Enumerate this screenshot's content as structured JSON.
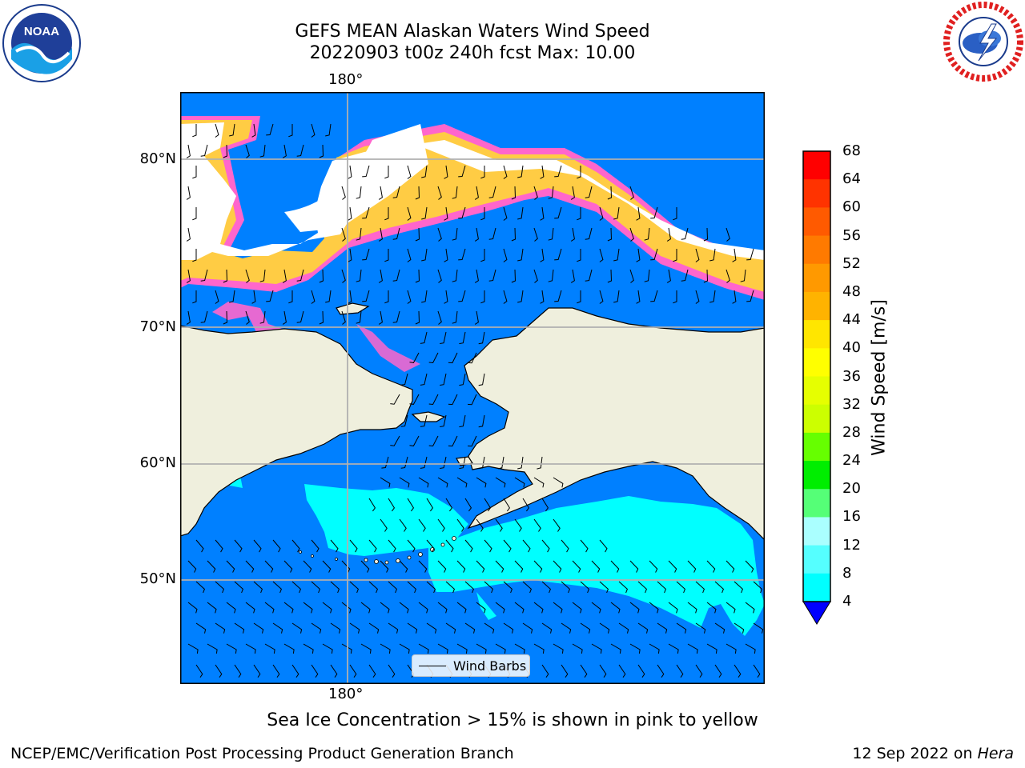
{
  "header": {
    "title_line1": "GEFS MEAN Alaskan Waters Wind Speed",
    "title_line2": "20220903 t00z 240h fcst   Max: 10.00"
  },
  "logos": {
    "left": {
      "icon": "noaa-logo-icon",
      "text": "NOAA"
    },
    "right": {
      "icon": "national-weather-service-logo-icon"
    }
  },
  "map": {
    "lon_label_top": "180°",
    "lon_label_bottom": "180°",
    "lat_labels": [
      "80°N",
      "70°N",
      "60°N",
      "50°N"
    ],
    "colors": {
      "ocean_low": "#0080ff",
      "ocean_mid": "#00ffff",
      "land": "#efefdd",
      "ice_edge": "#ff66cc",
      "ice_core": "#ffcc44"
    }
  },
  "legend": {
    "label": "Wind Barbs"
  },
  "colorbar": {
    "title": "Wind Speed [m/s]",
    "ticks": [
      "68",
      "64",
      "60",
      "56",
      "52",
      "48",
      "44",
      "40",
      "36",
      "32",
      "28",
      "24",
      "20",
      "16",
      "12",
      "8",
      "4"
    ],
    "colors_top_down": [
      "#ff0000",
      "#ff3300",
      "#ff5a00",
      "#ff7a00",
      "#ff9900",
      "#ffb300",
      "#ffe600",
      "#ffff00",
      "#e6ff00",
      "#ccff00",
      "#66ff00",
      "#00ee00",
      "#55ff77",
      "#aaffff",
      "#55ffff",
      "#00ffff",
      "#0080ff"
    ],
    "extend_color": "#0000ff"
  },
  "caption": "Sea Ice Concentration > 15% is shown in pink to yellow",
  "footer": {
    "left": "NCEP/EMC/Verification Post Processing Product Generation Branch",
    "right_prefix": "12 Sep 2022 on ",
    "right_host": "Hera"
  }
}
